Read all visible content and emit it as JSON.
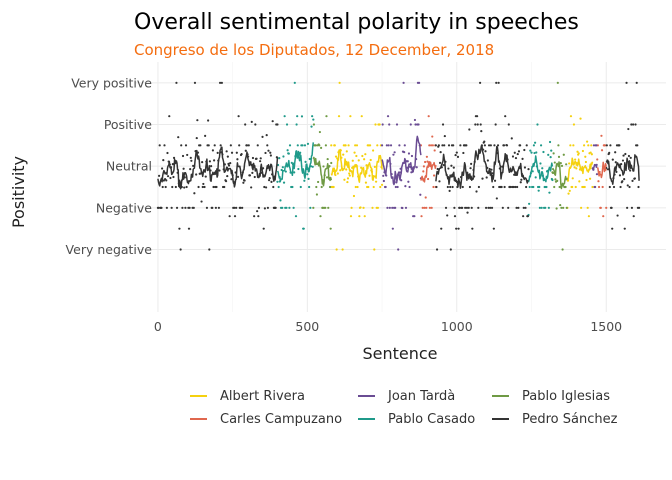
{
  "chart_data": {
    "type": "line",
    "title": "Overall sentimental polarity in speeches",
    "subtitle": "Congreso de los Diputados, 12 December, 2018",
    "xlabel": "Sentence",
    "ylabel": "Positivity",
    "xlim": [
      -80,
      1700
    ],
    "ylim": [
      -3.5,
      2.5
    ],
    "x_ticks": [
      0,
      500,
      1000,
      1500
    ],
    "x_tick_labels": [
      "0",
      "500",
      "1000",
      "1500"
    ],
    "y_ticks": [
      -2,
      -1,
      0,
      1,
      2
    ],
    "y_tick_labels": [
      "Very negative",
      "Negative",
      "Neutral",
      "Positive",
      "Very positive"
    ],
    "grid": true,
    "legend_position": "bottom",
    "series": [
      {
        "name": "Albert Rivera",
        "color": "#f5d10f",
        "segments": [
          [
            580,
            750
          ],
          [
            1370,
            1455
          ]
        ]
      },
      {
        "name": "Carles Campuzano",
        "color": "#e0674e",
        "segments": [
          [
            880,
            930
          ],
          [
            1470,
            1500
          ]
        ]
      },
      {
        "name": "Joan Tardà",
        "color": "#6a4c93",
        "segments": [
          [
            750,
            880
          ],
          [
            1455,
            1470
          ]
        ]
      },
      {
        "name": "Pablo Casado",
        "color": "#1f9a8a",
        "segments": [
          [
            400,
            520
          ],
          [
            1240,
            1320
          ]
        ]
      },
      {
        "name": "Pablo Iglesias",
        "color": "#6f9a44",
        "segments": [
          [
            520,
            580
          ],
          [
            1320,
            1370
          ]
        ]
      },
      {
        "name": "Pedro Sánchez",
        "color": "#333333",
        "segments": [
          [
            0,
            400
          ],
          [
            930,
            1240
          ],
          [
            1500,
            1610
          ]
        ]
      }
    ]
  },
  "colors": {
    "subtitle": "#f46d10",
    "grid": "#ebebeb"
  }
}
